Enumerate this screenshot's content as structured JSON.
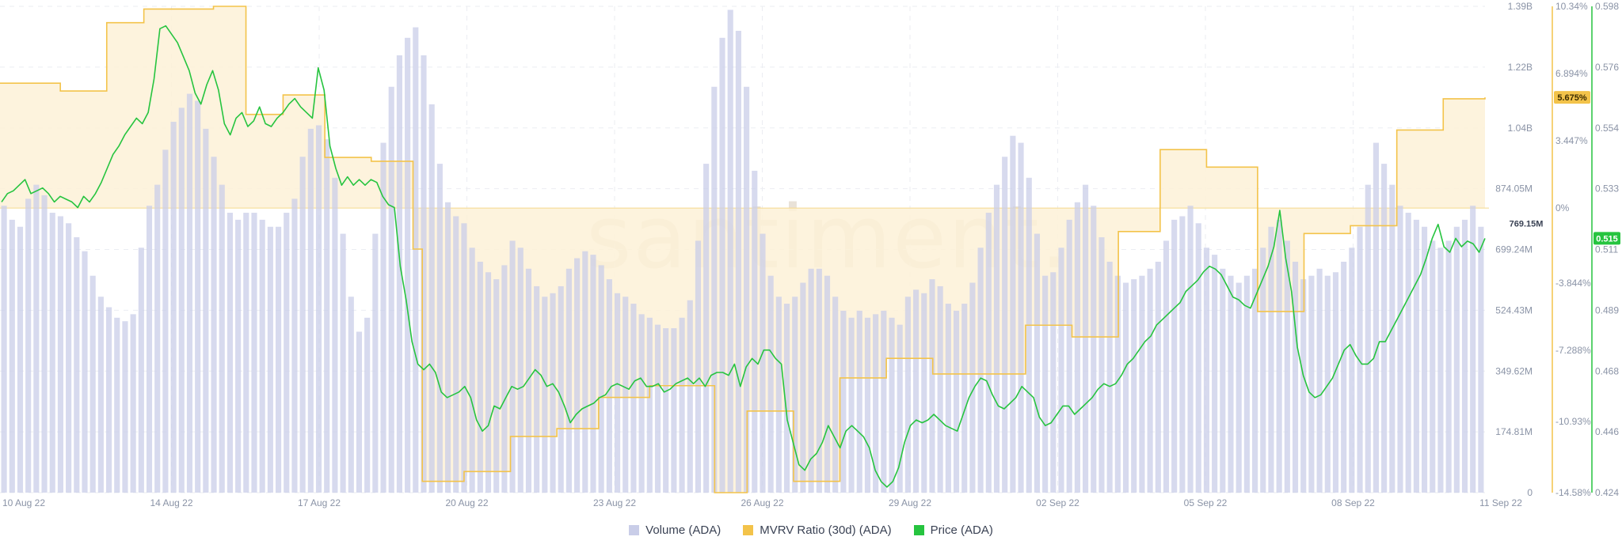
{
  "watermark": "santiment.",
  "colors": {
    "volume": "#c9cde8",
    "mvrv": "#f3c34a",
    "mvrv_fill": "#fdf1d7",
    "price": "#26c43f",
    "grid": "#ebedf2",
    "tick": "#8a93a6"
  },
  "legend": [
    {
      "label": "Volume (ADA)",
      "color": "#c9cde8"
    },
    {
      "label": "MVRV Ratio (30d) (ADA)",
      "color": "#f3c34a"
    },
    {
      "label": "Price (ADA)",
      "color": "#26c43f"
    }
  ],
  "chart_data": {
    "type": "bar",
    "x_tick_labels": [
      "10 Aug 22",
      "14 Aug 22",
      "17 Aug 22",
      "20 Aug 22",
      "23 Aug 22",
      "26 Aug 22",
      "29 Aug 22",
      "02 Sep 22",
      "05 Sep 22",
      "08 Sep 22",
      "11 Sep 22"
    ],
    "x_range": [
      "2022-08-10",
      "2022-09-11"
    ],
    "grid": true,
    "legend_position": "bottom-center",
    "axes": {
      "volume": {
        "ticks": [
          "1.39B",
          "1.22B",
          "1.04B",
          "874.05M",
          "699.24M",
          "524.43M",
          "349.62M",
          "174.81M",
          "0"
        ],
        "range": [
          0,
          1390000000.0
        ],
        "current_badge": "769.15M"
      },
      "mvrv": {
        "ticks": [
          "10.34%",
          "6.894%",
          "3.447%",
          "0%",
          "-3.844%",
          "-7.288%",
          "-10.93%",
          "-14.58%"
        ],
        "tick_values": [
          10.34,
          6.894,
          3.447,
          0,
          -3.844,
          -7.288,
          -10.93,
          -14.58
        ],
        "range": [
          -14.58,
          10.34
        ],
        "current_badge": "5.675%"
      },
      "price": {
        "ticks": [
          "0.598",
          "0.576",
          "0.554",
          "0.533",
          "0.511",
          "0.489",
          "0.468",
          "0.446",
          "0.424"
        ],
        "range": [
          0.424,
          0.598
        ],
        "current_badge": "0.515"
      }
    },
    "series": [
      {
        "name": "Volume (ADA)",
        "type": "bar",
        "unit": "ADA",
        "values_millions": [
          820,
          780,
          760,
          840,
          880,
          850,
          800,
          790,
          770,
          730,
          690,
          620,
          560,
          530,
          500,
          490,
          510,
          700,
          820,
          880,
          980,
          1060,
          1100,
          1140,
          1120,
          1040,
          960,
          880,
          800,
          780,
          800,
          800,
          780,
          760,
          760,
          800,
          840,
          960,
          1040,
          1050,
          1010,
          900,
          740,
          560,
          460,
          500,
          740,
          1000,
          1160,
          1250,
          1300,
          1330,
          1250,
          1110,
          940,
          830,
          790,
          770,
          700,
          660,
          630,
          610,
          650,
          720,
          700,
          640,
          590,
          560,
          570,
          590,
          640,
          670,
          690,
          680,
          650,
          610,
          570,
          560,
          540,
          510,
          500,
          480,
          470,
          470,
          500,
          550,
          720,
          940,
          1160,
          1300,
          1380,
          1320,
          1160,
          920,
          740,
          620,
          560,
          540,
          560,
          600,
          640,
          640,
          620,
          560,
          520,
          500,
          520,
          500,
          510,
          520,
          500,
          480,
          560,
          580,
          570,
          610,
          590,
          540,
          520,
          540,
          600,
          700,
          800,
          880,
          960,
          1020,
          1000,
          900,
          740,
          620,
          630,
          700,
          780,
          830,
          880,
          820,
          730,
          660,
          620,
          600,
          610,
          620,
          640,
          660,
          720,
          780,
          790,
          820,
          770,
          700,
          680,
          640,
          620,
          600,
          620,
          640,
          700,
          760,
          780,
          720,
          660,
          610,
          620,
          640,
          620,
          630,
          660,
          700,
          760,
          880,
          1000,
          940,
          880,
          820,
          800,
          780,
          760,
          720,
          700,
          720,
          760,
          780,
          820,
          760
        ],
        "note_x": "bars evenly spaced from 10 Aug 22 to 11 Sep 22"
      },
      {
        "name": "MVRV Ratio (30d) (ADA)",
        "type": "step-area",
        "unit": "percent",
        "steps": [
          {
            "date": "2022-08-10",
            "value": 6.4
          },
          {
            "date": "2022-08-11.3",
            "value": 6.0
          },
          {
            "date": "2022-08-12.3",
            "value": 9.5
          },
          {
            "date": "2022-08-13.1",
            "value": 10.2
          },
          {
            "date": "2022-08-14.6",
            "value": 10.34
          },
          {
            "date": "2022-08-15.3",
            "value": 4.8
          },
          {
            "date": "2022-08-16.1",
            "value": 5.8
          },
          {
            "date": "2022-08-17.0",
            "value": 2.6
          },
          {
            "date": "2022-08-18.0",
            "value": 2.4
          },
          {
            "date": "2022-08-18.9",
            "value": -2.1
          },
          {
            "date": "2022-08-19.1",
            "value": -14.0
          },
          {
            "date": "2022-08-20.0",
            "value": -13.5
          },
          {
            "date": "2022-08-21.0",
            "value": -11.7
          },
          {
            "date": "2022-08-22.0",
            "value": -11.3
          },
          {
            "date": "2022-08-22.9",
            "value": -9.7
          },
          {
            "date": "2022-08-24.0",
            "value": -9.1
          },
          {
            "date": "2022-08-25.4",
            "value": -14.58
          },
          {
            "date": "2022-08-26.1",
            "value": -10.4
          },
          {
            "date": "2022-08-27.1",
            "value": -14.0
          },
          {
            "date": "2022-08-28.1",
            "value": -8.7
          },
          {
            "date": "2022-08-29.1",
            "value": -7.7
          },
          {
            "date": "2022-08-30.1",
            "value": -8.5
          },
          {
            "date": "2022-09-01.1",
            "value": -6.0
          },
          {
            "date": "2022-09-02.1",
            "value": -6.6
          },
          {
            "date": "2022-09-03.1",
            "value": -1.2
          },
          {
            "date": "2022-09-04.0",
            "value": 3.0
          },
          {
            "date": "2022-09-05.0",
            "value": 2.1
          },
          {
            "date": "2022-09-06.1",
            "value": -5.3
          },
          {
            "date": "2022-09-07.1",
            "value": -1.3
          },
          {
            "date": "2022-09-08.1",
            "value": -0.9
          },
          {
            "date": "2022-09-09.1",
            "value": 4.0
          },
          {
            "date": "2022-09-10.1",
            "value": 5.6
          },
          {
            "date": "2022-09-11.0",
            "value": 5.675
          }
        ]
      },
      {
        "name": "Price (ADA)",
        "type": "line",
        "unit": "USD",
        "values": [
          0.528,
          0.531,
          0.532,
          0.534,
          0.536,
          0.531,
          0.532,
          0.533,
          0.531,
          0.528,
          0.53,
          0.529,
          0.528,
          0.526,
          0.53,
          0.528,
          0.531,
          0.535,
          0.54,
          0.545,
          0.548,
          0.552,
          0.555,
          0.558,
          0.556,
          0.56,
          0.572,
          0.59,
          0.591,
          0.588,
          0.585,
          0.58,
          0.575,
          0.567,
          0.563,
          0.57,
          0.575,
          0.568,
          0.556,
          0.552,
          0.558,
          0.56,
          0.555,
          0.557,
          0.562,
          0.556,
          0.555,
          0.558,
          0.56,
          0.563,
          0.565,
          0.562,
          0.56,
          0.558,
          0.576,
          0.568,
          0.548,
          0.54,
          0.534,
          0.537,
          0.534,
          0.536,
          0.534,
          0.536,
          0.535,
          0.53,
          0.527,
          0.526,
          0.505,
          0.493,
          0.478,
          0.47,
          0.468,
          0.47,
          0.467,
          0.46,
          0.458,
          0.459,
          0.46,
          0.462,
          0.458,
          0.45,
          0.446,
          0.448,
          0.455,
          0.454,
          0.458,
          0.462,
          0.461,
          0.462,
          0.465,
          0.468,
          0.466,
          0.462,
          0.463,
          0.46,
          0.455,
          0.449,
          0.452,
          0.454,
          0.455,
          0.456,
          0.458,
          0.459,
          0.462,
          0.463,
          0.462,
          0.461,
          0.464,
          0.465,
          0.462,
          0.462,
          0.463,
          0.46,
          0.461,
          0.463,
          0.464,
          0.465,
          0.463,
          0.465,
          0.462,
          0.466,
          0.467,
          0.467,
          0.466,
          0.47,
          0.462,
          0.469,
          0.472,
          0.47,
          0.475,
          0.475,
          0.472,
          0.47,
          0.45,
          0.442,
          0.434,
          0.432,
          0.436,
          0.438,
          0.442,
          0.448,
          0.444,
          0.44,
          0.446,
          0.448,
          0.446,
          0.444,
          0.44,
          0.432,
          0.428,
          0.426,
          0.428,
          0.433,
          0.442,
          0.448,
          0.45,
          0.449,
          0.45,
          0.452,
          0.45,
          0.448,
          0.447,
          0.446,
          0.452,
          0.458,
          0.462,
          0.465,
          0.464,
          0.459,
          0.455,
          0.454,
          0.456,
          0.458,
          0.462,
          0.46,
          0.458,
          0.451,
          0.448,
          0.449,
          0.452,
          0.455,
          0.455,
          0.452,
          0.454,
          0.456,
          0.458,
          0.461,
          0.463,
          0.462,
          0.463,
          0.466,
          0.47,
          0.472,
          0.475,
          0.478,
          0.48,
          0.484,
          0.486,
          0.488,
          0.49,
          0.492,
          0.496,
          0.498,
          0.5,
          0.503,
          0.505,
          0.504,
          0.502,
          0.498,
          0.494,
          0.493,
          0.491,
          0.49,
          0.495,
          0.5,
          0.505,
          0.512,
          0.525,
          0.508,
          0.496,
          0.476,
          0.466,
          0.46,
          0.458,
          0.459,
          0.462,
          0.465,
          0.47,
          0.475,
          0.477,
          0.473,
          0.47,
          0.47,
          0.472,
          0.478,
          0.478,
          0.482,
          0.486,
          0.49,
          0.494,
          0.498,
          0.502,
          0.508,
          0.515,
          0.52,
          0.512,
          0.51,
          0.515,
          0.512,
          0.514,
          0.513,
          0.51,
          0.515
        ]
      }
    ]
  }
}
